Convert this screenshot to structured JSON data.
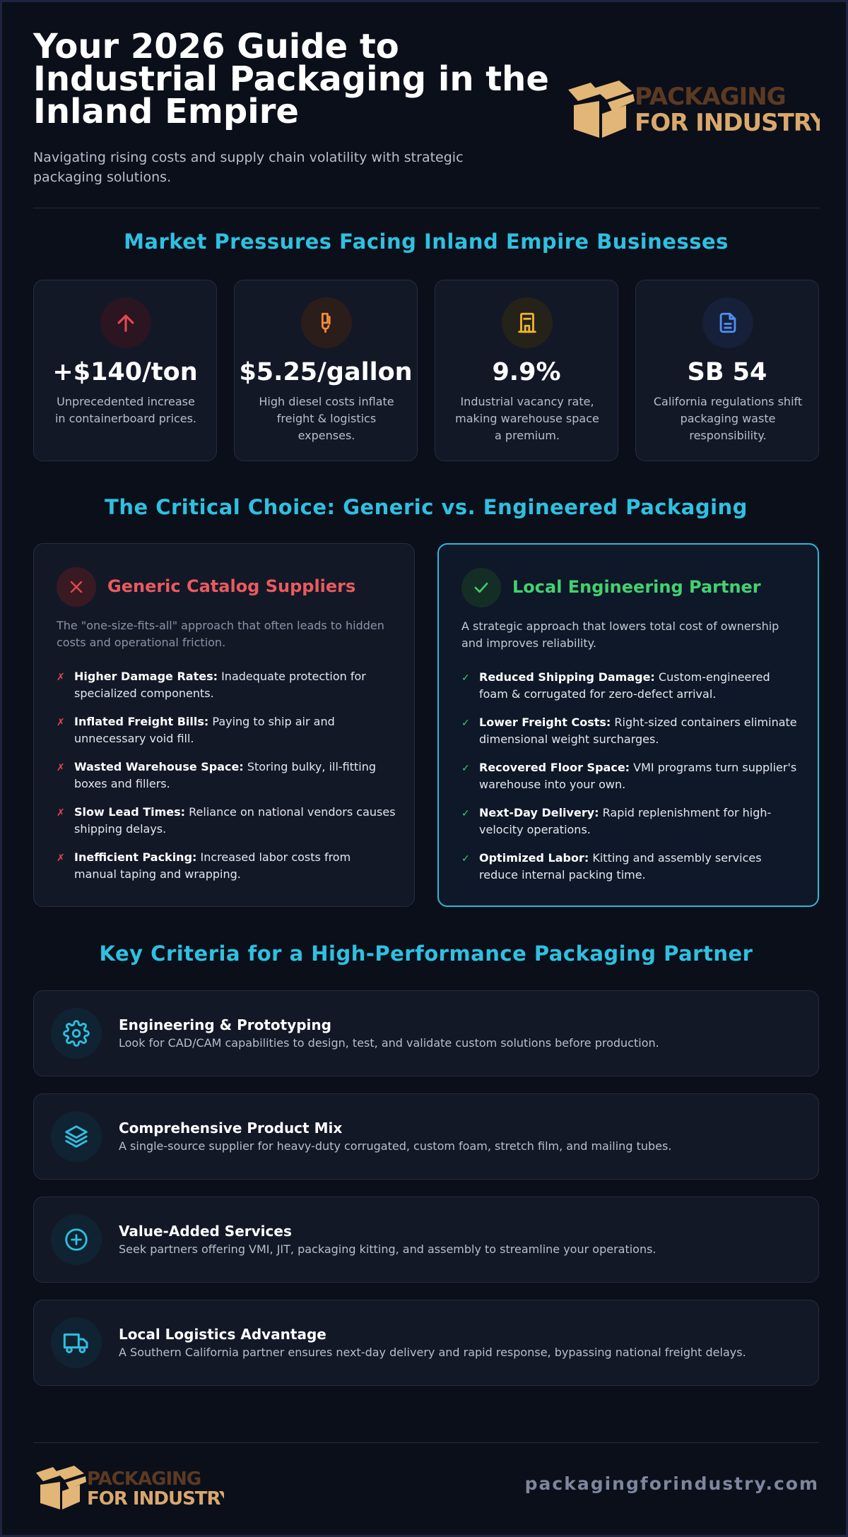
{
  "header": {
    "title": "Your 2026 Guide to Industrial Packaging in the Inland Empire",
    "subtitle": "Navigating rising costs and supply chain volatility with strategic packaging solutions."
  },
  "logo": {
    "line1": "PACKAGING",
    "line2": "FOR INDUSTRY",
    "colors": {
      "line1": "#5b3a22",
      "line2": "#d9a86c",
      "box": "#e2b676"
    }
  },
  "market": {
    "title": "Market Pressures Facing Inland Empire Businesses",
    "stats": [
      {
        "value": "+$140/ton",
        "desc": "Unprecedented increase in containerboard prices.",
        "icon": "arrow-up-icon",
        "color": "#e5484d"
      },
      {
        "value": "$5.25/gallon",
        "desc": "High diesel costs inflate freight & logistics expenses.",
        "icon": "fuel-pump-icon",
        "color": "#f08a3c"
      },
      {
        "value": "9.9%",
        "desc": "Industrial vacancy rate, making warehouse space a premium.",
        "icon": "building-icon",
        "color": "#f0b429"
      },
      {
        "value": "SB 54",
        "desc": "California regulations shift packaging waste responsibility.",
        "icon": "document-icon",
        "color": "#4f8ff7"
      }
    ]
  },
  "choice": {
    "title": "The Critical Choice: Generic vs. Engineered Packaging",
    "generic": {
      "title": "Generic Catalog Suppliers",
      "intro": "The \"one-size-fits-all\" approach that often leads to hidden costs and operational friction.",
      "mark": "✗",
      "items": [
        {
          "label": "Higher Damage Rates:",
          "text": " Inadequate protection for specialized components."
        },
        {
          "label": "Inflated Freight Bills:",
          "text": " Paying to ship air and unnecessary void fill."
        },
        {
          "label": "Wasted Warehouse Space:",
          "text": " Storing bulky, ill-fitting boxes and fillers."
        },
        {
          "label": "Slow Lead Times:",
          "text": " Reliance on national vendors causes shipping delays."
        },
        {
          "label": "Inefficient Packing:",
          "text": " Increased labor costs from manual taping and wrapping."
        }
      ]
    },
    "partner": {
      "title": "Local Engineering Partner",
      "intro": "A strategic approach that lowers total cost of ownership and improves reliability.",
      "mark": "✓",
      "items": [
        {
          "label": "Reduced Shipping Damage:",
          "text": " Custom-engineered foam & corrugated for zero-defect arrival."
        },
        {
          "label": "Lower Freight Costs:",
          "text": " Right-sized containers eliminate dimensional weight surcharges."
        },
        {
          "label": "Recovered Floor Space:",
          "text": " VMI programs turn supplier's warehouse into your own."
        },
        {
          "label": "Next-Day Delivery:",
          "text": " Rapid replenishment for high-velocity operations."
        },
        {
          "label": "Optimized Labor:",
          "text": " Kitting and assembly services reduce internal packing time."
        }
      ]
    }
  },
  "criteria": {
    "title": "Key Criteria for a High-Performance Packaging Partner",
    "items": [
      {
        "title": "Engineering & Prototyping",
        "desc": "Look for CAD/CAM capabilities to design, test, and validate custom solutions before production.",
        "icon": "gear-icon"
      },
      {
        "title": "Comprehensive Product Mix",
        "desc": "A single-source supplier for heavy-duty corrugated, custom foam, stretch film, and mailing tubes.",
        "icon": "layers-icon"
      },
      {
        "title": "Value-Added Services",
        "desc": "Seek partners offering VMI, JIT, packaging kitting, and assembly to streamline your operations.",
        "icon": "plus-circle-icon"
      },
      {
        "title": "Local Logistics Advantage",
        "desc": "A Southern California partner ensures next-day delivery and rapid response, bypassing national freight delays.",
        "icon": "truck-icon"
      }
    ]
  },
  "footer": {
    "url": "packagingforindustry.com"
  }
}
